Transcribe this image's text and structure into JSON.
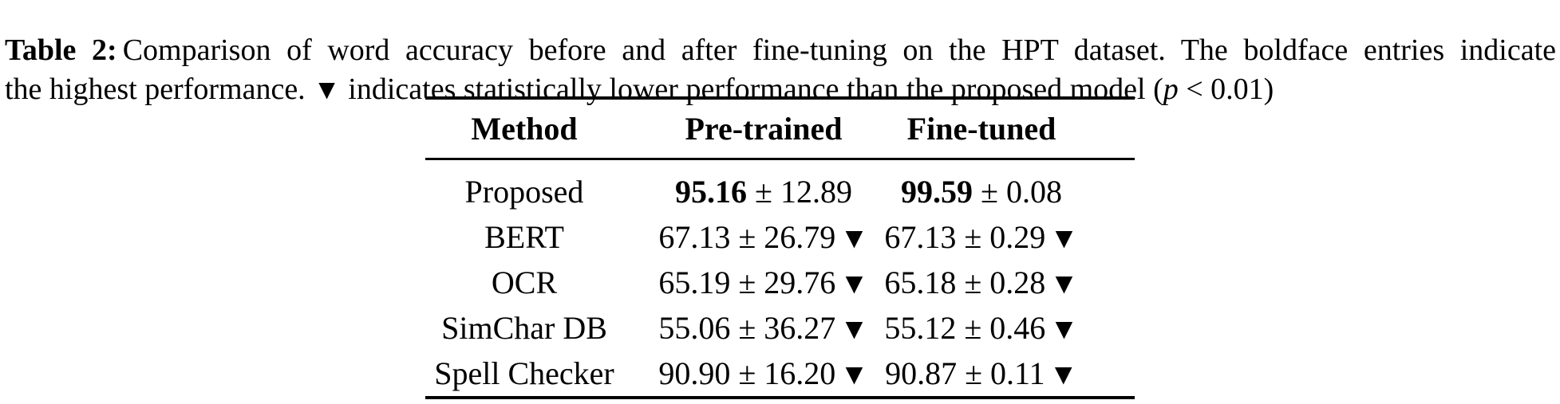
{
  "caption": {
    "label": "Table 2:",
    "line1_rest": "Comparison of word accuracy before and after fine-tuning on the HPT dataset. The boldface entries indicate",
    "line2_start": "the highest performance.",
    "marker": "▼",
    "line2_mid": "indicates statistically lower performance than the proposed model (",
    "p_var": "p",
    "line2_end": " < 0.01)"
  },
  "symbols": {
    "pm": "±",
    "stat_lower_marker": "▼"
  },
  "table": {
    "headers": [
      "Method",
      "Pre-trained",
      "Fine-tuned"
    ],
    "rows": [
      {
        "method": "Proposed",
        "pre": {
          "mean": "95.16",
          "std": "12.89",
          "best": true,
          "marker": ""
        },
        "fine": {
          "mean": "99.59",
          "std": "0.08",
          "best": true,
          "marker": ""
        }
      },
      {
        "method": "BERT",
        "pre": {
          "mean": "67.13",
          "std": "26.79",
          "best": false,
          "marker": "▼"
        },
        "fine": {
          "mean": "67.13",
          "std": "0.29",
          "best": false,
          "marker": "▼"
        }
      },
      {
        "method": "OCR",
        "pre": {
          "mean": "65.19",
          "std": "29.76",
          "best": false,
          "marker": "▼"
        },
        "fine": {
          "mean": "65.18",
          "std": "0.28",
          "best": false,
          "marker": "▼"
        }
      },
      {
        "method": "SimChar DB",
        "pre": {
          "mean": "55.06",
          "std": "36.27",
          "best": false,
          "marker": "▼"
        },
        "fine": {
          "mean": "55.12",
          "std": "0.46",
          "best": false,
          "marker": "▼"
        }
      },
      {
        "method": "Spell Checker",
        "pre": {
          "mean": "90.90",
          "std": "16.20",
          "best": false,
          "marker": "▼"
        },
        "fine": {
          "mean": "90.87",
          "std": "0.11",
          "best": false,
          "marker": "▼"
        }
      }
    ]
  },
  "colors": {
    "text": "#000000",
    "background": "#ffffff"
  },
  "chart_data": {
    "type": "table",
    "title": "Table 2: Comparison of word accuracy before and after fine-tuning on the HPT dataset",
    "columns": [
      "Method",
      "Pre-trained",
      "Fine-tuned"
    ],
    "rows": [
      [
        "Proposed",
        "95.16 ± 12.89",
        "99.59 ± 0.08"
      ],
      [
        "BERT",
        "67.13 ± 26.79 ▼",
        "67.13 ± 0.29 ▼"
      ],
      [
        "OCR",
        "65.19 ± 29.76 ▼",
        "65.18 ± 0.28 ▼"
      ],
      [
        "SimChar DB",
        "55.06 ± 36.27 ▼",
        "55.12 ± 0.46 ▼"
      ],
      [
        "Spell Checker",
        "90.90 ± 16.20 ▼",
        "90.87 ± 0.11 ▼"
      ]
    ]
  }
}
